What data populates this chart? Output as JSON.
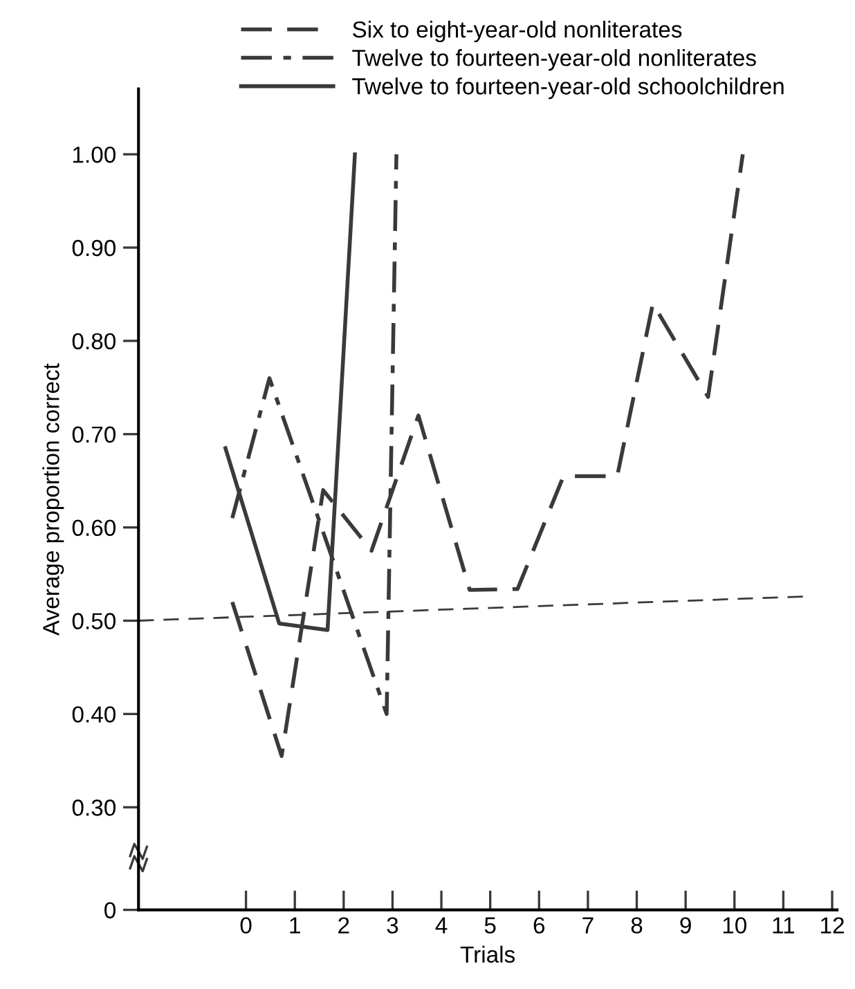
{
  "chart_data": {
    "type": "line",
    "xlabel": "Trials",
    "ylabel": "Average proportion correct",
    "xlim": [
      -2.2,
      12.1
    ],
    "xticks": [
      0,
      1,
      2,
      3,
      4,
      5,
      6,
      7,
      8,
      9,
      10,
      11,
      12
    ],
    "ylim": [
      0.19,
      1.07
    ],
    "yticks": [
      {
        "value": 0.19,
        "label": "0"
      },
      {
        "value": 0.3,
        "label": "0.30"
      },
      {
        "value": 0.4,
        "label": "0.40"
      },
      {
        "value": 0.5,
        "label": "0.50"
      },
      {
        "value": 0.6,
        "label": "0.60"
      },
      {
        "value": 0.7,
        "label": "0.70"
      },
      {
        "value": 0.8,
        "label": "0.80"
      },
      {
        "value": 0.9,
        "label": "0.90"
      },
      {
        "value": 1.0,
        "label": "1.00"
      }
    ],
    "grid": false,
    "legend": "top",
    "marker": "none",
    "series": [
      {
        "name": "Six to eight-year-old nonliterates",
        "color": "#3a3a3a",
        "line_style": "dashed",
        "x": [
          -0.28,
          0.73,
          1.58,
          2.57,
          3.53,
          4.58,
          5.56,
          6.5,
          7.6,
          8.33,
          9.46,
          10.17
        ],
        "values": [
          0.52,
          0.355,
          0.64,
          0.575,
          0.72,
          0.533,
          0.534,
          0.655,
          0.655,
          0.84,
          0.74,
          1.0
        ]
      },
      {
        "name": "Twelve to fourteen-year-old nonliterates",
        "color": "#3a3a3a",
        "line_style": "dashdot",
        "x": [
          -0.28,
          0.48,
          2.88,
          3.08
        ],
        "values": [
          0.61,
          0.76,
          0.4,
          1.0
        ]
      },
      {
        "name": "Twelve to fourteen-year-old schoolchildren",
        "color": "#3a3a3a",
        "line_style": "solid",
        "x": [
          -0.42,
          0.68,
          1.67,
          2.23
        ],
        "values": [
          0.685,
          0.497,
          0.49,
          1.0
        ]
      },
      {
        "color": "#3a3a3a",
        "line_style": "dashed",
        "x": [
          -2.2,
          11.44
        ],
        "values": [
          0.5,
          0.526
        ]
      }
    ]
  }
}
